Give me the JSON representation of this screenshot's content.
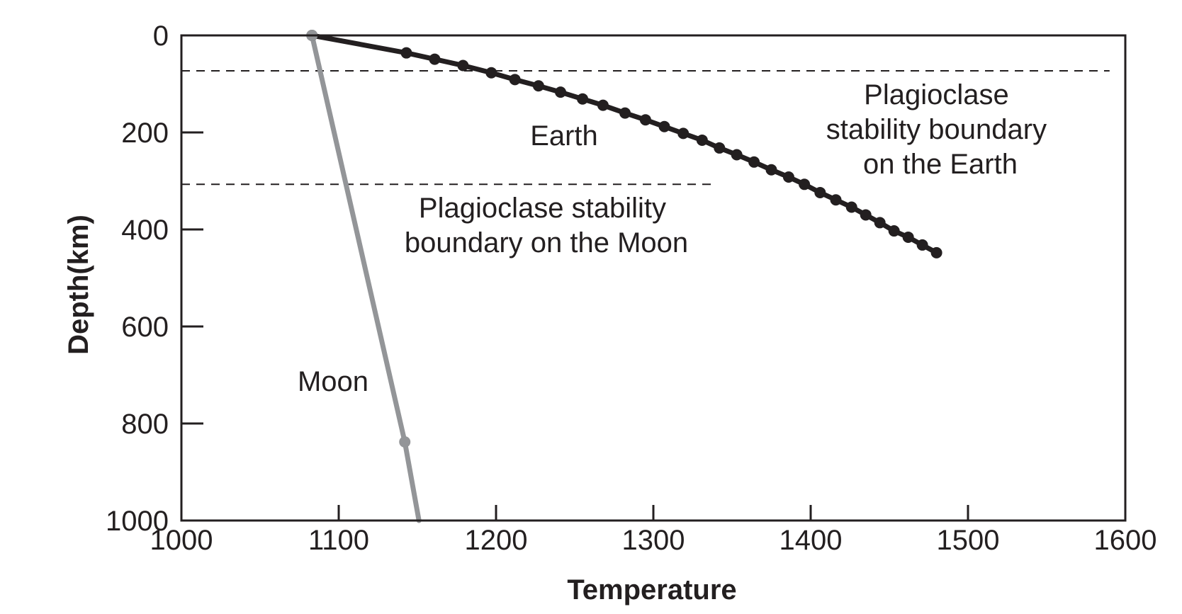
{
  "chart_data": {
    "type": "line",
    "title": "",
    "xlabel": "Temperature",
    "ylabel": "Depth(km)",
    "xlim": [
      1000,
      1600
    ],
    "ylim": [
      0,
      1000
    ],
    "y_inverted": true,
    "grid": false,
    "x_ticks": [
      1000,
      1100,
      1200,
      1300,
      1400,
      1500,
      1600
    ],
    "y_ticks": [
      0,
      200,
      400,
      600,
      800,
      1000
    ],
    "x_tick_labels": [
      "1000",
      "1100",
      "1200",
      "1300",
      "1400",
      "1500",
      "1600"
    ],
    "y_tick_labels": [
      "0",
      "200",
      "400",
      "600",
      "800",
      "1000"
    ],
    "series": [
      {
        "name": "Earth",
        "color": "#231f20",
        "x": [
          1083,
          1143,
          1161,
          1179,
          1197,
          1212,
          1227,
          1241,
          1255,
          1268,
          1282,
          1295,
          1307,
          1319,
          1331,
          1342,
          1353,
          1364,
          1375,
          1386,
          1396,
          1406,
          1416,
          1426,
          1435,
          1444,
          1453,
          1462,
          1471,
          1480
        ],
        "y": [
          0,
          36,
          49,
          62,
          77,
          91,
          104,
          117,
          131,
          144,
          160,
          174,
          188,
          202,
          216,
          232,
          246,
          261,
          277,
          292,
          307,
          324,
          339,
          354,
          370,
          386,
          403,
          416,
          432,
          448
        ]
      },
      {
        "name": "Moon",
        "color": "#939598",
        "x": [
          1083,
          1142,
          1151
        ],
        "y": [
          0,
          838,
          1000
        ],
        "markers_x": [
          1083,
          1142
        ],
        "markers_y": [
          0,
          838
        ]
      }
    ],
    "reference_lines": [
      {
        "label": "Plagioclase stability boundary on the Earth",
        "y": 73,
        "x_from": 1000,
        "x_to": 1590
      },
      {
        "label": "Plagioclase stability boundary on the Moon",
        "y": 307,
        "x_from": 1000,
        "x_to": 1340
      }
    ],
    "annotations": {
      "earth_label": "Earth",
      "moon_label": "Moon",
      "earth_boundary_lines": [
        "Plagioclase",
        "stability boundary",
        "on the Earth"
      ],
      "moon_boundary_lines": [
        "Plagioclase stability",
        "boundary on the Moon"
      ]
    }
  }
}
